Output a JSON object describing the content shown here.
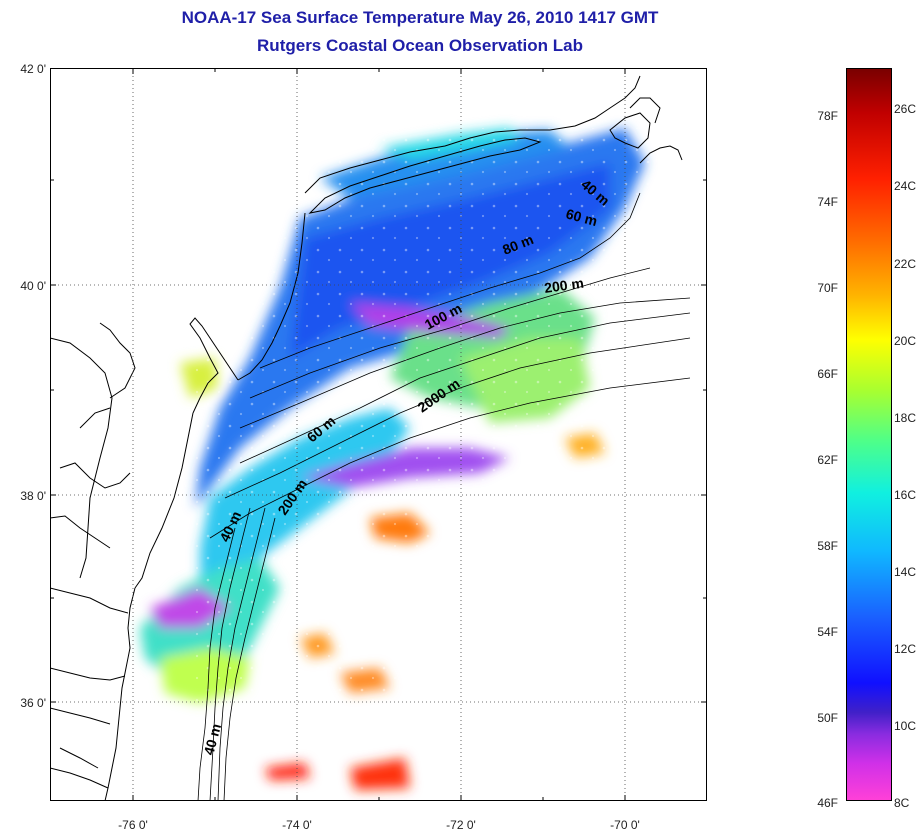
{
  "title": "NOAA-17 Sea Surface Temperature May 26, 2010 1417 GMT",
  "subtitle": "Rutgers Coastal Ocean Observation Lab",
  "map": {
    "lat_labels": [
      "42 0'",
      "40 0'",
      "38 0'",
      "36 0'"
    ],
    "lon_labels": [
      "-76 0'",
      "-74 0'",
      "-72 0'",
      "-70 0'"
    ],
    "lat_range": [
      35.0,
      42.0
    ],
    "lon_range": [
      -77.0,
      -69.0
    ],
    "gridlines": "dotted",
    "depth_contour_labels": [
      "40 m",
      "60 m",
      "80 m",
      "200 m",
      "100 m",
      "2000 m",
      "60 m",
      "200 m",
      "40 m",
      "40 m"
    ]
  },
  "colorbar": {
    "fahrenheit_labels": [
      "78F",
      "74F",
      "70F",
      "66F",
      "62F",
      "58F",
      "54F",
      "50F",
      "46F"
    ],
    "celsius_labels": [
      "26C",
      "24C",
      "22C",
      "20C",
      "18C",
      "16C",
      "14C",
      "12C",
      "10C",
      "8C"
    ],
    "range_celsius": [
      8,
      27
    ],
    "colors": [
      "#7a0000",
      "#ff2000",
      "#ffb400",
      "#ffff00",
      "#4dff8a",
      "#10f0e0",
      "#1a60ff",
      "#1010ff",
      "#8a2ce0",
      "#ff40d8"
    ]
  }
}
